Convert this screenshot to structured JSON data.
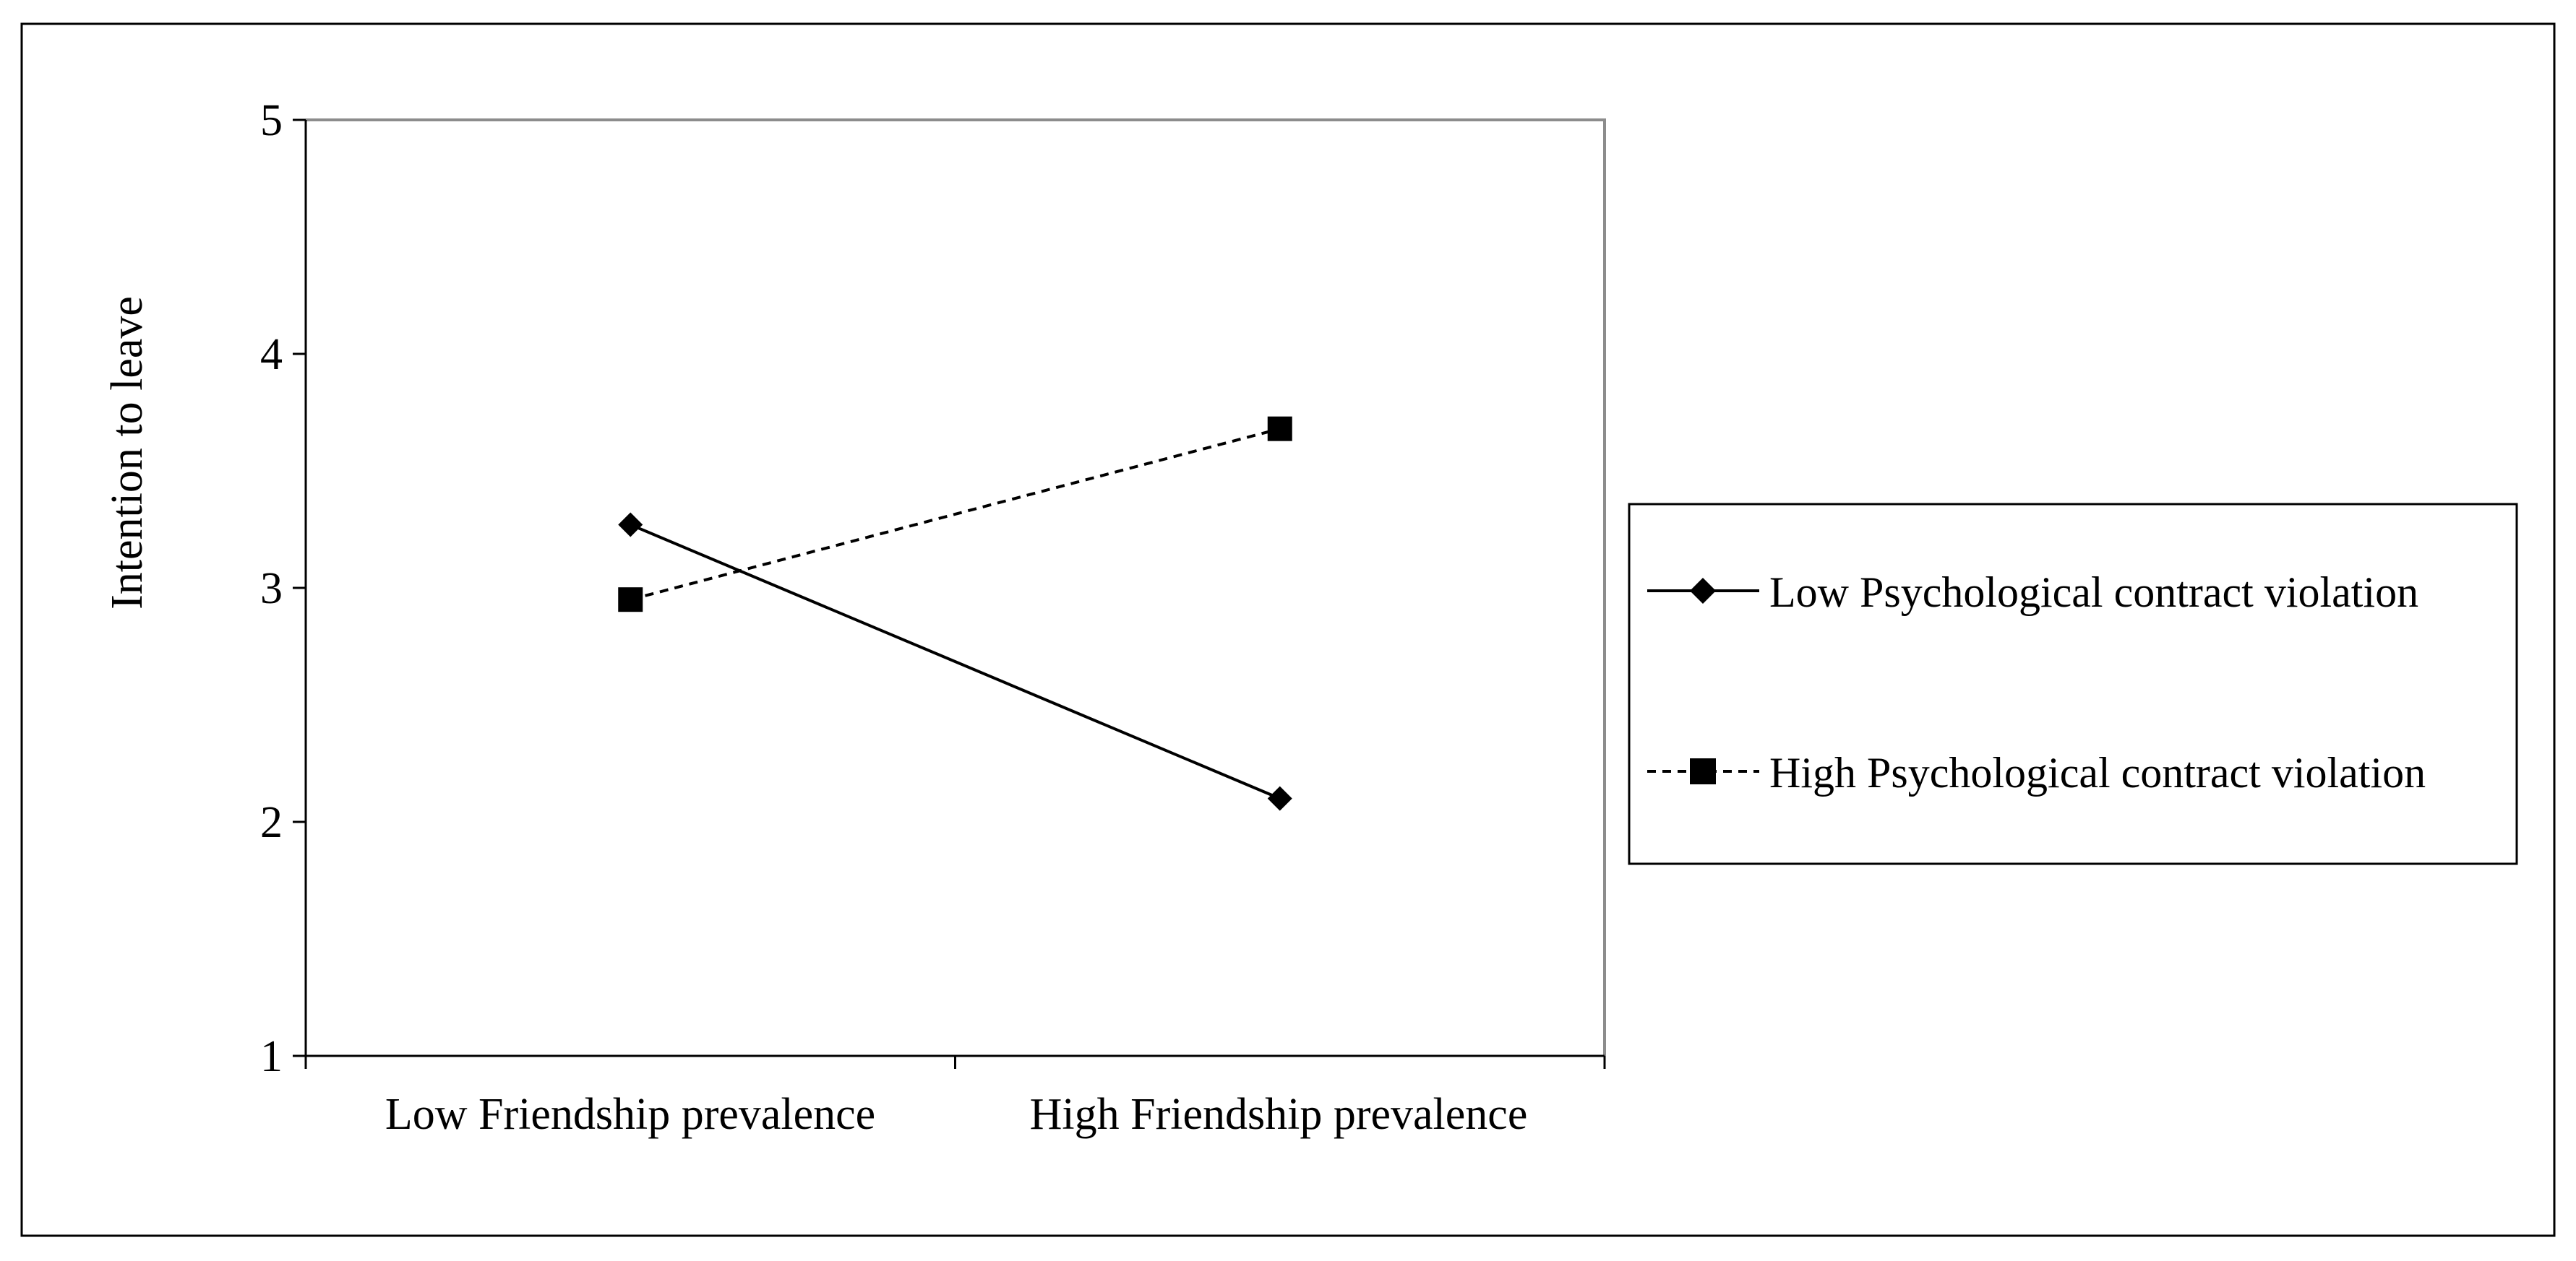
{
  "chart_data": {
    "type": "line",
    "categories": [
      "Low Friendship prevalence",
      "High Friendship prevalence"
    ],
    "series": [
      {
        "name": "Low Psychological contract violation",
        "values": [
          3.27,
          2.1
        ],
        "line_style": "solid",
        "marker": "diamond",
        "color": "#000000"
      },
      {
        "name": "High Psychological contract violation",
        "values": [
          2.95,
          3.68
        ],
        "line_style": "dashed",
        "marker": "square",
        "color": "#000000"
      }
    ],
    "ylabel": "Intention to leave",
    "xlabel": "",
    "ylim": [
      1,
      5
    ],
    "yticks": [
      "1",
      "2",
      "3",
      "4",
      "5"
    ],
    "grid": false,
    "legend_position": "right",
    "plot_border_color": "#808080"
  }
}
